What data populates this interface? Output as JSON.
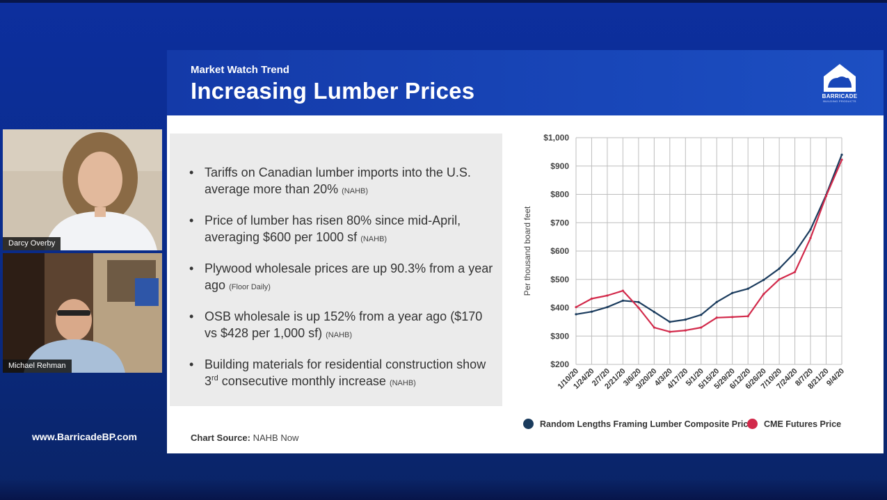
{
  "slide": {
    "kicker": "Market Watch Trend",
    "title": "Increasing Lumber Prices",
    "logo_text": "BARRICADE",
    "logo_subtext": "BUILDING PRODUCTS",
    "bullets": [
      {
        "text": "Tariffs on Canadian lumber imports into the U.S. average more than 20%",
        "source": "(NAHB)"
      },
      {
        "text": "Price of lumber has risen 80% since mid-April, averaging $600 per 1000 sf",
        "source": "(NAHB)"
      },
      {
        "text": "Plywood wholesale prices are up 90.3% from a year ago",
        "source": "(Floor Daily)"
      },
      {
        "text": "OSB wholesale is up 152% from a year ago ($170 vs $428 per 1,000 sf)",
        "source": "(NAHB)"
      },
      {
        "pre": "Building materials for residential construction show 3",
        "sup": "rd",
        "post": " consecutive monthly increase",
        "source": "(NAHB)"
      }
    ],
    "chart_source_label": "Chart Source:",
    "chart_source_value": "NAHB Now",
    "colors": {
      "accent_blue": "#1846b8",
      "series_navy": "#1a3b5d",
      "series_red": "#d2294a"
    }
  },
  "chart_data": {
    "type": "line",
    "ylabel": "Per thousand board feet",
    "ylim": [
      200,
      1000
    ],
    "yticks": [
      "$200",
      "$300",
      "$400",
      "$500",
      "$600",
      "$700",
      "$800",
      "$900",
      "$1,000"
    ],
    "x": [
      "1/10/20",
      "1/24/20",
      "2/7/20",
      "2/21/20",
      "3/6/20",
      "3/20/20",
      "4/3/20",
      "4/17/20",
      "5/1/20",
      "5/15/20",
      "5/29/20",
      "6/12/20",
      "6/26/20",
      "7/10/20",
      "7/24/20",
      "8/7/20",
      "8/21/20",
      "9/4/20"
    ],
    "grid": true,
    "legend_position": "bottom",
    "series": [
      {
        "name": "Random Lengths Framing Lumber Composite Price",
        "color": "#1a3b5d",
        "values": [
          377,
          386,
          402,
          425,
          420,
          385,
          350,
          358,
          375,
          420,
          452,
          467,
          498,
          538,
          595,
          676,
          798,
          940
        ]
      },
      {
        "name": "CME Futures Price",
        "color": "#d2294a",
        "values": [
          402,
          432,
          443,
          460,
          400,
          330,
          315,
          320,
          330,
          365,
          367,
          370,
          448,
          500,
          526,
          646,
          794,
          922
        ]
      }
    ]
  },
  "participants": [
    {
      "name": "Darcy Overby"
    },
    {
      "name": "Michael Rehman"
    }
  ],
  "website": "www.BarricadeBP.com"
}
